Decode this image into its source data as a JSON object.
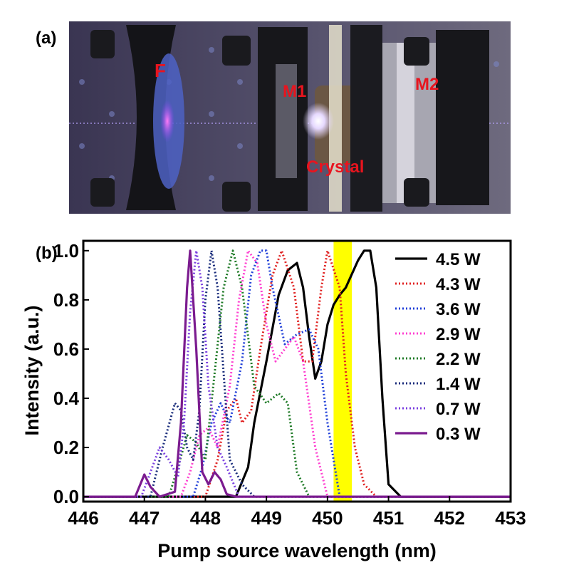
{
  "panel_a": {
    "label": "(a)",
    "components": [
      {
        "name": "F",
        "color": "#e8141e"
      },
      {
        "name": "M1",
        "color": "#e8141e"
      },
      {
        "name": "Crystal",
        "color": "#e8141e"
      },
      {
        "name": "M2",
        "color": "#e8141e"
      }
    ]
  },
  "panel_b": {
    "label": "(b)"
  },
  "chart_data": {
    "type": "line",
    "xlabel": "Pump source wavelength (nm)",
    "ylabel": "Intensity (a.u.)",
    "xlim": [
      446,
      453
    ],
    "ylim": [
      -0.02,
      1.04
    ],
    "xticks": [
      "446",
      "447",
      "448",
      "449",
      "450",
      "451",
      "452",
      "453"
    ],
    "yticks": [
      "0.0",
      "0.2",
      "0.4",
      "0.6",
      "0.8",
      "1.0"
    ],
    "legend_position": "right",
    "highlight_band": {
      "x0": 450.1,
      "x1": 450.4,
      "color": "#ffff00"
    },
    "series": [
      {
        "name": "4.5 W",
        "color": "#000000",
        "style": "solid",
        "x": [
          446.0,
          448.5,
          448.7,
          448.8,
          449.0,
          449.2,
          449.35,
          449.5,
          449.6,
          449.7,
          449.8,
          449.9,
          450.0,
          450.1,
          450.2,
          450.3,
          450.5,
          450.6,
          450.7,
          450.8,
          450.9,
          451.0,
          451.2,
          453.0
        ],
        "y": [
          0.0,
          0.0,
          0.12,
          0.3,
          0.55,
          0.82,
          0.92,
          0.95,
          0.85,
          0.65,
          0.48,
          0.55,
          0.7,
          0.78,
          0.82,
          0.85,
          0.96,
          1.0,
          1.0,
          0.85,
          0.4,
          0.05,
          0.0,
          0.0
        ]
      },
      {
        "name": "4.3 W",
        "color": "#e02020",
        "style": "dotted",
        "x": [
          446.0,
          448.0,
          448.2,
          448.35,
          448.5,
          448.6,
          448.75,
          448.9,
          449.1,
          449.25,
          449.45,
          449.6,
          449.75,
          449.9,
          450.0,
          450.2,
          450.3,
          450.45,
          450.6,
          450.8,
          453.0
        ],
        "y": [
          0.0,
          0.0,
          0.15,
          0.35,
          0.4,
          0.3,
          0.35,
          0.6,
          0.9,
          1.0,
          0.85,
          0.55,
          0.55,
          0.85,
          1.0,
          0.85,
          0.5,
          0.2,
          0.05,
          0.0,
          0.0
        ]
      },
      {
        "name": "3.6 W",
        "color": "#1f3fd8",
        "style": "dotted",
        "x": [
          446.0,
          447.8,
          447.95,
          448.1,
          448.25,
          448.4,
          448.6,
          448.75,
          448.9,
          449.0,
          449.1,
          449.3,
          449.5,
          449.7,
          449.85,
          450.0,
          450.2,
          453.0
        ],
        "y": [
          0.0,
          0.0,
          0.12,
          0.3,
          0.38,
          0.3,
          0.55,
          0.9,
          1.0,
          1.0,
          0.85,
          0.62,
          0.66,
          0.68,
          0.6,
          0.3,
          0.0,
          0.0
        ]
      },
      {
        "name": "2.9 W",
        "color": "#ff3fd0",
        "style": "dotted",
        "x": [
          446.0,
          447.6,
          447.75,
          447.9,
          448.05,
          448.2,
          448.4,
          448.55,
          448.7,
          448.85,
          449.0,
          449.15,
          449.3,
          449.45,
          449.6,
          449.8,
          450.0,
          453.0
        ],
        "y": [
          0.0,
          0.0,
          0.1,
          0.25,
          0.28,
          0.2,
          0.45,
          0.8,
          1.0,
          0.95,
          0.7,
          0.55,
          0.6,
          0.65,
          0.55,
          0.2,
          0.0,
          0.0
        ]
      },
      {
        "name": "2.2 W",
        "color": "#1e7a26",
        "style": "dotted",
        "x": [
          446.0,
          447.4,
          447.55,
          447.7,
          447.85,
          448.0,
          448.15,
          448.3,
          448.45,
          448.6,
          448.8,
          449.0,
          449.2,
          449.35,
          449.5,
          449.7,
          453.0
        ],
        "y": [
          0.0,
          0.0,
          0.12,
          0.25,
          0.22,
          0.15,
          0.5,
          0.85,
          1.0,
          0.85,
          0.45,
          0.38,
          0.42,
          0.38,
          0.1,
          0.0,
          0.0
        ]
      },
      {
        "name": "1.4 W",
        "color": "#172a7a",
        "style": "dotted",
        "x": [
          446.0,
          447.1,
          447.3,
          447.5,
          447.6,
          447.7,
          447.8,
          447.9,
          448.0,
          448.1,
          448.2,
          448.3,
          448.4,
          448.6,
          448.8,
          453.0
        ],
        "y": [
          0.0,
          0.0,
          0.2,
          0.38,
          0.35,
          0.2,
          0.15,
          0.35,
          0.8,
          1.0,
          0.85,
          0.5,
          0.15,
          0.05,
          0.0,
          0.0
        ]
      },
      {
        "name": "0.7 W",
        "color": "#7a3fe0",
        "style": "dotted",
        "x": [
          446.0,
          446.95,
          447.1,
          447.25,
          447.4,
          447.55,
          447.65,
          447.75,
          447.85,
          447.95,
          448.05,
          448.2,
          448.35,
          448.55,
          453.0
        ],
        "y": [
          0.0,
          0.0,
          0.1,
          0.2,
          0.15,
          0.08,
          0.3,
          0.75,
          1.0,
          0.85,
          0.45,
          0.2,
          0.12,
          0.0,
          0.0
        ]
      },
      {
        "name": "0.3 W",
        "color": "#7b1b8f",
        "style": "solid",
        "x": [
          446.0,
          446.85,
          447.0,
          447.1,
          447.25,
          447.5,
          447.6,
          447.7,
          447.75,
          447.85,
          447.95,
          448.05,
          448.15,
          448.25,
          448.35,
          448.5,
          453.0
        ],
        "y": [
          0.0,
          0.0,
          0.09,
          0.04,
          0.0,
          0.02,
          0.3,
          0.85,
          1.0,
          0.6,
          0.1,
          0.05,
          0.1,
          0.07,
          0.01,
          0.0,
          0.0
        ]
      }
    ]
  }
}
